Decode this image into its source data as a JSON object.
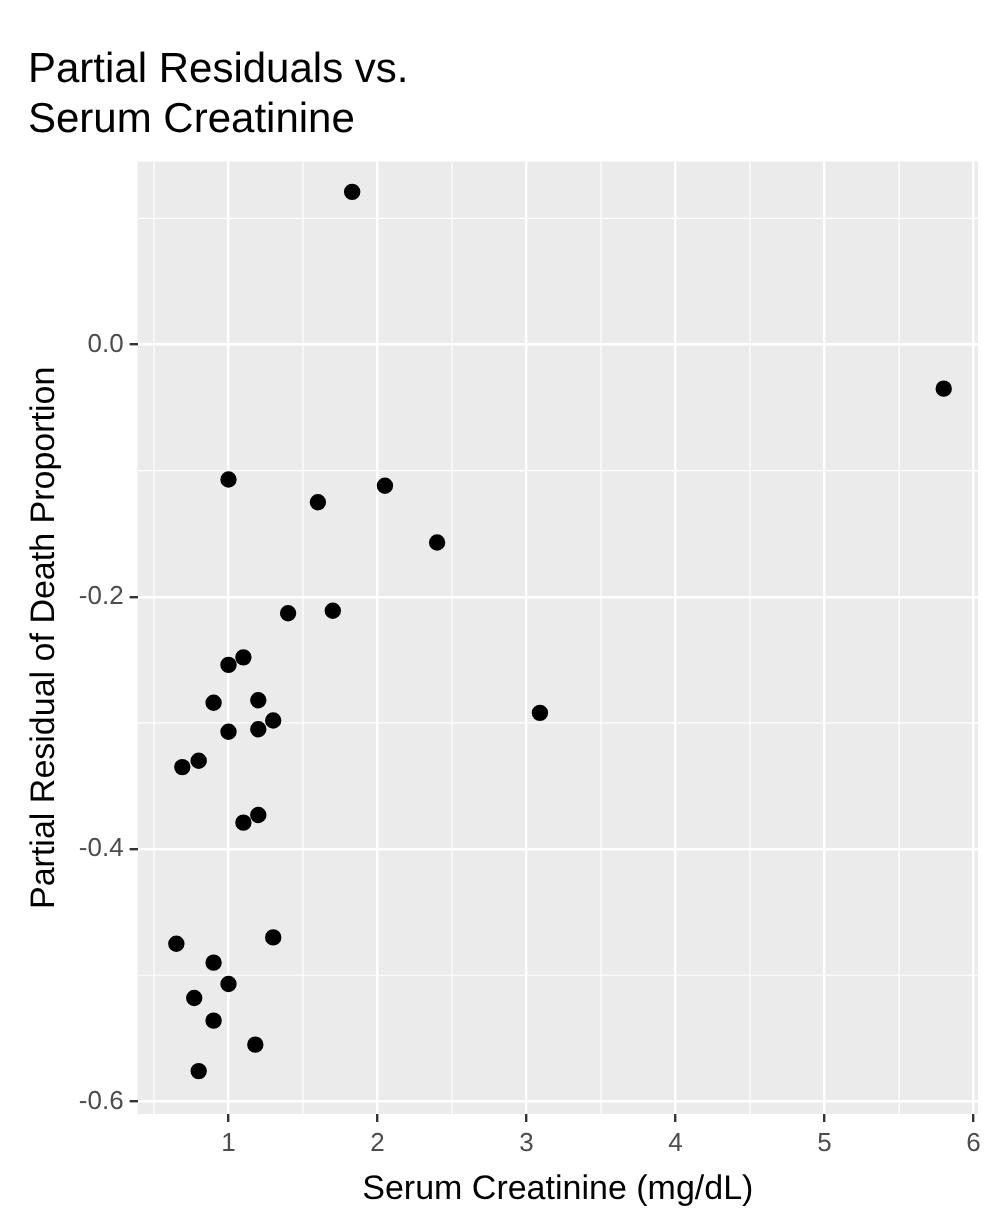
{
  "chart_data": {
    "type": "scatter",
    "title": "Partial Residuals vs. Serum Creatinine",
    "xlabel": "Serum Creatinine (mg/dL)",
    "ylabel": "Partial Residual of Death Proportion",
    "x": [
      1.83,
      1.0,
      1.6,
      2.05,
      2.4,
      1.4,
      1.7,
      1.1,
      1.0,
      0.9,
      1.2,
      1.3,
      1.0,
      1.2,
      0.69,
      0.8,
      1.1,
      1.2,
      0.65,
      1.3,
      0.9,
      1.0,
      0.77,
      0.9,
      1.18,
      0.8,
      3.09,
      5.8
    ],
    "values": [
      0.121,
      -0.107,
      -0.125,
      -0.112,
      -0.157,
      -0.213,
      -0.211,
      -0.248,
      -0.254,
      -0.284,
      -0.282,
      -0.298,
      -0.307,
      -0.305,
      -0.335,
      -0.33,
      -0.379,
      -0.373,
      -0.475,
      -0.47,
      -0.49,
      -0.507,
      -0.518,
      -0.536,
      -0.555,
      -0.576,
      -0.292,
      -0.035
    ],
    "color": "#000000",
    "marker": "circle",
    "grid": true,
    "legend": false,
    "xlim": [
      0.39,
      6.03
    ],
    "xticks": [
      1,
      2,
      3,
      4,
      5,
      6
    ],
    "ylim": [
      -0.61,
      0.145
    ],
    "yticks": [
      {
        "value": -0.6,
        "label": "-0.6"
      },
      {
        "value": -0.4,
        "label": "-0.4"
      },
      {
        "value": -0.2,
        "label": "-0.2"
      },
      {
        "value": 0,
        "label": "0.0"
      }
    ]
  }
}
